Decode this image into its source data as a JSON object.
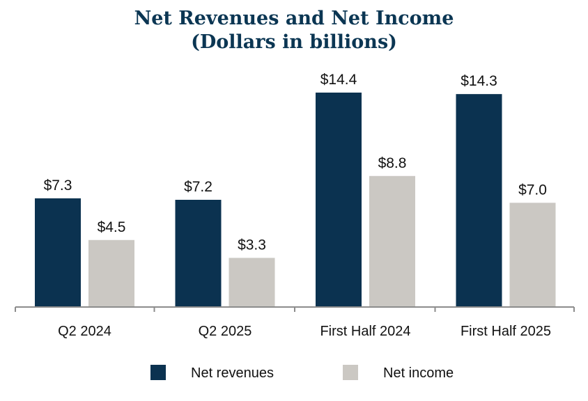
{
  "chart_data": {
    "type": "bar",
    "title_line1": "Net Revenues and Net Income",
    "title_line2": "(Dollars in billions)",
    "categories": [
      "Q2 2024",
      "Q2 2025",
      "First Half 2024",
      "First Half 2025"
    ],
    "series": [
      {
        "name": "Net revenues",
        "color": "#0b3250",
        "values": [
          7.3,
          7.2,
          14.4,
          14.3
        ],
        "labels": [
          "$7.3",
          "$7.2",
          "$14.4",
          "$14.3"
        ]
      },
      {
        "name": "Net income",
        "color": "#cbc8c3",
        "values": [
          4.5,
          3.3,
          8.8,
          7.0
        ],
        "labels": [
          "$4.5",
          "$3.3",
          "$8.8",
          "$7.0"
        ]
      }
    ],
    "ylim": [
      0,
      15
    ],
    "legend": "bottom-center",
    "grid": false
  }
}
